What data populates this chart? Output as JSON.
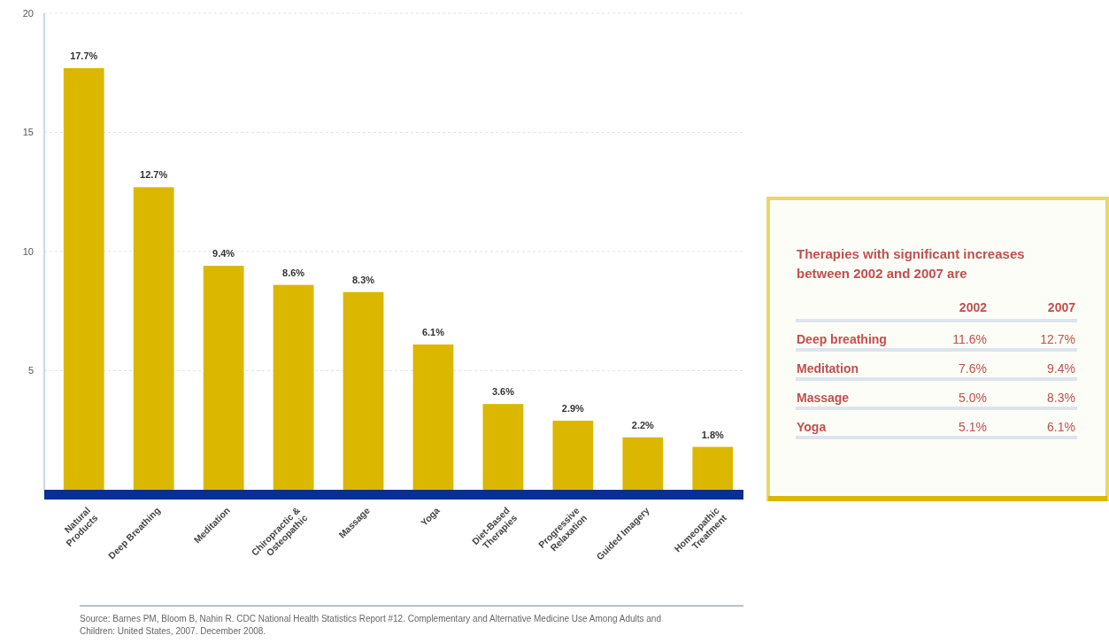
{
  "chart_data": [
    {
      "type": "bar",
      "categories": [
        "Natural Products",
        "Deep Breathing",
        "Meditation",
        "Chiropractic & Osteopathic",
        "Massage",
        "Yoga",
        "Diet-Based Therapies",
        "Progressive Relaxation",
        "Guided Imagery",
        "Homeopathic Treatment"
      ],
      "values": [
        17.7,
        12.7,
        9.4,
        8.6,
        8.3,
        6.1,
        3.6,
        2.9,
        2.2,
        1.8
      ],
      "value_labels": [
        "17.7%",
        "12.7%",
        "9.4%",
        "8.6%",
        "8.3%",
        "6.1%",
        "3.6%",
        "2.9%",
        "2.2%",
        "1.8%"
      ],
      "color": "#dbb700",
      "ylim": [
        0,
        20
      ],
      "yticks": [
        5,
        10,
        15,
        20
      ],
      "grid": "y",
      "annotations": [
        "Source: Barnes PM, Bloom B, Nahin R. CDC National Health Statistics Report #12. Complementary and Alternative Medicine Use Among Adults and Children: United States, 2007. December 2008."
      ]
    },
    {
      "type": "other",
      "title": "Therapies with significant increases between 2002 and 2007 are",
      "categories": [
        "Deep breathing",
        "Meditation",
        "Massage",
        "Yoga"
      ],
      "series": [
        {
          "name": "2002",
          "values": [
            11.6,
            7.6,
            5.0,
            5.1
          ],
          "value_labels": [
            "11.6%",
            "7.6%",
            "5.0%",
            "5.1%"
          ]
        },
        {
          "name": "2007",
          "values": [
            12.7,
            9.4,
            8.3,
            6.1
          ],
          "value_labels": [
            "12.7%",
            "9.4%",
            "8.3%",
            "6.1%"
          ]
        }
      ]
    }
  ]
}
